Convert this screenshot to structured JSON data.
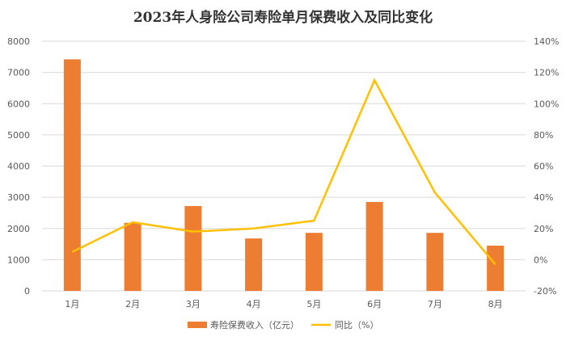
{
  "chart_data": {
    "type": "bar+line",
    "title": "2023年人身险公司寿险单月保费收入及同比变化",
    "categories": [
      "1月",
      "2月",
      "3月",
      "4月",
      "5月",
      "6月",
      "7月",
      "8月"
    ],
    "series": [
      {
        "name": "寿险保费收入（亿元）",
        "type": "bar",
        "axis": "left",
        "color": "#ED7D31",
        "values": [
          7420,
          2180,
          2720,
          1680,
          1860,
          2850,
          1860,
          1450
        ]
      },
      {
        "name": "同比（%）",
        "type": "line",
        "axis": "right",
        "color": "#FFC000",
        "values": [
          5,
          24,
          18,
          20,
          25,
          115,
          43,
          -3
        ]
      }
    ],
    "y_left": {
      "min": 0,
      "max": 8000,
      "step": 1000,
      "ticks": [
        "0",
        "1000",
        "2000",
        "3000",
        "4000",
        "5000",
        "6000",
        "7000",
        "8000"
      ]
    },
    "y_right": {
      "min": -20,
      "max": 140,
      "step": 20,
      "ticks": [
        "-20%",
        "0%",
        "20%",
        "40%",
        "60%",
        "80%",
        "100%",
        "120%",
        "140%"
      ]
    },
    "grid": true,
    "legend": "bottom"
  }
}
